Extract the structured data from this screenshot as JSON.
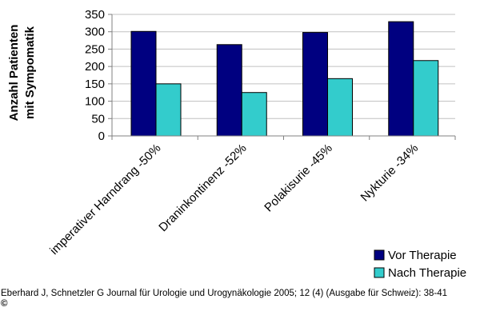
{
  "chart_data": {
    "type": "bar",
    "ylabel_line1": "Anzahl Patienten",
    "ylabel_line2": "mit Sympomatik",
    "categories": [
      "imperativer Harndrang -50%",
      "Draninkontinenz -52%",
      "Polakisurie -45%",
      "Nykturie -34%"
    ],
    "series": [
      {
        "name": "Vor Therapie",
        "color": "#000080",
        "values": [
          301,
          263,
          298,
          329
        ]
      },
      {
        "name": "Nach Therapie",
        "color": "#33CCCC",
        "values": [
          150,
          125,
          165,
          217
        ]
      }
    ],
    "ylim": [
      0,
      350
    ],
    "yticks": [
      "0",
      "50",
      "100",
      "150",
      "200",
      "250",
      "300",
      "350"
    ],
    "grid": true,
    "legend": "bottom-right"
  },
  "footer": {
    "citation": "Eberhard J, Schnetzler G Journal für Urologie und Urogynäkologie 2005; 12 (4) (Ausgabe für Schweiz): 38-41",
    "copyright": "©"
  }
}
